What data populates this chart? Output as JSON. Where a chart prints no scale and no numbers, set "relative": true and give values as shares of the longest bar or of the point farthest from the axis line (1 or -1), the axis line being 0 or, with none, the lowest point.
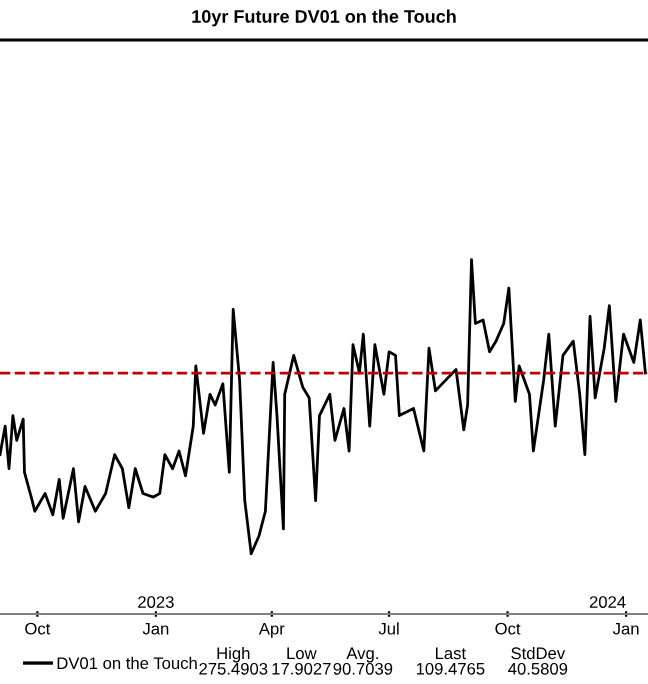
{
  "chart_data": {
    "type": "line",
    "title": "10yr Future DV01 on the Touch",
    "relative": true,
    "x": [
      "2022-09-02",
      "2022-09-06",
      "2022-09-09",
      "2022-09-12",
      "2022-09-15",
      "2022-09-20",
      "2022-09-21",
      "2022-09-27",
      "2022-09-29",
      "2022-10-07",
      "2022-10-13",
      "2022-10-18",
      "2022-10-21",
      "2022-10-29",
      "2022-11-02",
      "2022-11-07",
      "2022-11-15",
      "2022-11-23",
      "2022-11-30",
      "2022-12-06",
      "2022-12-11",
      "2022-12-16",
      "2022-12-22",
      "2022-12-30",
      "2023-01-04",
      "2023-01-08",
      "2023-01-14",
      "2023-01-19",
      "2023-01-24",
      "2023-01-30",
      "2023-02-01",
      "2023-02-07",
      "2023-02-12",
      "2023-02-16",
      "2023-02-22",
      "2023-02-27",
      "2023-03-02",
      "2023-03-07",
      "2023-03-11",
      "2023-03-16",
      "2023-03-22",
      "2023-03-27",
      "2023-04-02",
      "2023-04-05",
      "2023-04-10",
      "2023-04-11",
      "2023-04-18",
      "2023-04-25",
      "2023-04-30",
      "2023-05-05",
      "2023-05-08",
      "2023-05-16",
      "2023-05-20",
      "2023-05-27",
      "2023-05-31",
      "2023-06-03",
      "2023-06-08",
      "2023-06-11",
      "2023-06-16",
      "2023-06-20",
      "2023-06-27",
      "2023-07-01",
      "2023-07-06",
      "2023-07-09",
      "2023-07-20",
      "2023-07-28",
      "2023-08-01",
      "2023-08-06",
      "2023-08-14",
      "2023-08-22",
      "2023-08-28",
      "2023-08-31",
      "2023-09-03",
      "2023-09-06",
      "2023-09-12",
      "2023-09-17",
      "2023-09-22",
      "2023-09-28",
      "2023-10-02",
      "2023-10-07",
      "2023-10-10",
      "2023-10-18",
      "2023-10-21",
      "2023-10-29",
      "2023-11-02",
      "2023-11-07",
      "2023-11-13",
      "2023-11-21",
      "2023-11-26",
      "2023-11-30",
      "2023-12-04",
      "2023-12-08",
      "2023-12-15",
      "2023-12-19",
      "2023-12-24",
      "2023-12-30",
      "2024-01-07",
      "2024-01-12",
      "2024-01-16"
    ],
    "series": [
      {
        "name": "DV01 on the Touch",
        "color": "#000000",
        "values": [
          0.45,
          0.53,
          0.41,
          0.56,
          0.49,
          0.55,
          0.4,
          0.32,
          0.29,
          0.34,
          0.28,
          0.38,
          0.27,
          0.41,
          0.26,
          0.36,
          0.29,
          0.34,
          0.45,
          0.41,
          0.3,
          0.41,
          0.34,
          0.33,
          0.34,
          0.45,
          0.41,
          0.46,
          0.39,
          0.53,
          0.7,
          0.51,
          0.62,
          0.59,
          0.65,
          0.4,
          0.86,
          0.66,
          0.32,
          0.17,
          0.22,
          0.29,
          0.71,
          0.56,
          0.24,
          0.62,
          0.73,
          0.64,
          0.61,
          0.32,
          0.56,
          0.62,
          0.49,
          0.58,
          0.46,
          0.76,
          0.68,
          0.79,
          0.53,
          0.76,
          0.62,
          0.74,
          0.73,
          0.56,
          0.58,
          0.46,
          0.75,
          0.63,
          0.66,
          0.69,
          0.52,
          0.59,
          1.0,
          0.82,
          0.83,
          0.74,
          0.77,
          0.82,
          0.92,
          0.6,
          0.7,
          0.62,
          0.46,
          0.66,
          0.79,
          0.53,
          0.73,
          0.77,
          0.62,
          0.45,
          0.84,
          0.61,
          0.75,
          0.87,
          0.6,
          0.79,
          0.71,
          0.83,
          0.68
        ]
      }
    ],
    "xlim": [
      "2022-09-02",
      "2024-01-18"
    ],
    "xticks": [
      {
        "value": "2022-10-01",
        "label": "Oct"
      },
      {
        "value": "2023-01-01",
        "label": "Jan"
      },
      {
        "value": "2023-04-01",
        "label": "Apr"
      },
      {
        "value": "2023-07-01",
        "label": "Jul"
      },
      {
        "value": "2023-10-01",
        "label": "Oct"
      },
      {
        "value": "2024-01-01",
        "label": "Jan"
      }
    ],
    "ref_lines": [
      {
        "axis": "y",
        "value": 0.68,
        "color": "#c00000",
        "line_style": "dashed"
      }
    ],
    "annotations": [
      "2023",
      "2024",
      "High\n275.4903",
      "Low\n17.9027",
      "Avg.\n90.7039",
      "Last\n109.4765",
      "StdDev\n40.5809"
    ],
    "legend": "bottom",
    "grid": false
  }
}
